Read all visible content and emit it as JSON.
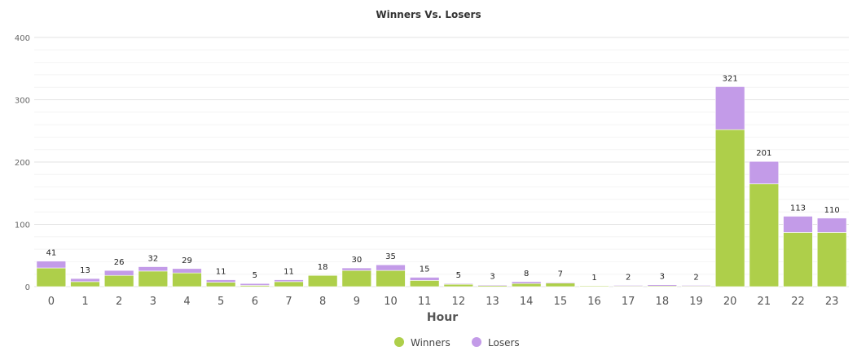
{
  "chart_data": {
    "type": "bar",
    "stacked": true,
    "title": "Winners Vs. Losers",
    "xlabel": "Hour",
    "ylabel": "",
    "ylim": [
      0,
      400
    ],
    "yticks": [
      0,
      100,
      200,
      300,
      400
    ],
    "grid": true,
    "legend_position": "bottom-center",
    "categories": [
      "0",
      "1",
      "2",
      "3",
      "4",
      "5",
      "6",
      "7",
      "8",
      "9",
      "10",
      "11",
      "12",
      "13",
      "14",
      "15",
      "16",
      "17",
      "18",
      "19",
      "20",
      "21",
      "22",
      "23"
    ],
    "series": [
      {
        "name": "Winners",
        "color": "#aecf4a",
        "values": [
          30,
          8,
          18,
          25,
          22,
          7,
          2,
          8,
          18,
          26,
          26,
          10,
          4,
          2,
          5,
          6,
          1,
          1,
          1,
          1,
          252,
          165,
          87,
          87
        ]
      },
      {
        "name": "Losers",
        "color": "#c39be8",
        "values": [
          11,
          5,
          8,
          7,
          7,
          4,
          3,
          3,
          0,
          4,
          9,
          5,
          1,
          1,
          3,
          1,
          0,
          1,
          2,
          1,
          69,
          36,
          26,
          23
        ]
      }
    ],
    "totals": [
      41,
      13,
      26,
      32,
      29,
      11,
      5,
      11,
      18,
      30,
      35,
      15,
      5,
      3,
      8,
      7,
      1,
      2,
      3,
      2,
      321,
      201,
      113,
      110
    ]
  }
}
